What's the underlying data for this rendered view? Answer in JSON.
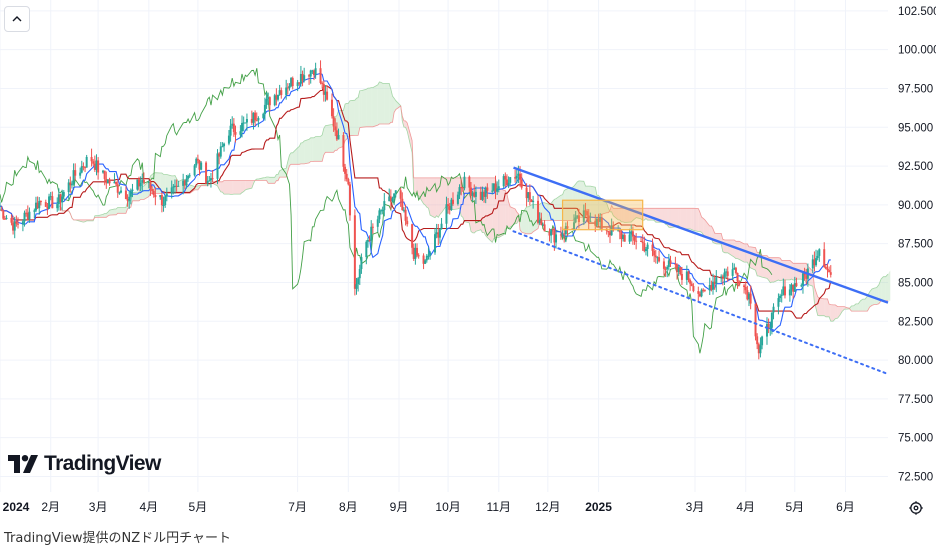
{
  "caption": "TradingView提供のNZドル円チャート",
  "logo_text": "TradingView",
  "icons": {
    "collapse": "chevron-up-icon",
    "settings": "gear-icon",
    "logo": "tradingview-logo-icon"
  },
  "colors": {
    "up_candle": "#26a69a",
    "down_candle": "#ef5350",
    "tenkan": "#2962ff",
    "kijun": "#b71c1c",
    "chikou": "#43a047",
    "cloud_bull": "#a5d6a7",
    "cloud_bear": "#ef9a9a",
    "trendline": "#3d6ef5",
    "highlight_box": "#f6b64a"
  },
  "chart_data": {
    "type": "candlestick",
    "symbol": "NZDJPY",
    "x_axis_labels": [
      "2024",
      "2月",
      "3月",
      "4月",
      "5月",
      "7月",
      "8月",
      "9月",
      "10月",
      "11月",
      "12月",
      "2025",
      "3月",
      "4月",
      "5月",
      "6月"
    ],
    "x_axis_bold": [
      "2024",
      "2025"
    ],
    "y_axis_labels": [
      "102.500",
      "100.000",
      "97.500",
      "95.000",
      "92.500",
      "90.000",
      "87.500",
      "85.000",
      "82.500",
      "80.000",
      "77.500",
      "75.000",
      "72.500"
    ],
    "ylim": [
      71.5,
      103.2
    ],
    "xlim": [
      "2024-01-01",
      "2025-06-27"
    ],
    "grid": true,
    "price_path": [
      [
        "2024-01-01",
        89.7
      ],
      [
        "2024-01-10",
        88.6
      ],
      [
        "2024-01-25",
        90.2
      ],
      [
        "2024-02-05",
        90.1
      ],
      [
        "2024-02-15",
        91.8
      ],
      [
        "2024-02-25",
        93.1
      ],
      [
        "2024-03-05",
        91.7
      ],
      [
        "2024-03-20",
        90.6
      ],
      [
        "2024-03-28",
        91.6
      ],
      [
        "2024-04-10",
        90.2
      ],
      [
        "2024-04-20",
        91.2
      ],
      [
        "2024-04-30",
        92.8
      ],
      [
        "2024-05-08",
        91.5
      ],
      [
        "2024-05-20",
        94.8
      ],
      [
        "2024-05-31",
        95.2
      ],
      [
        "2024-06-10",
        96.3
      ],
      [
        "2024-06-20",
        97.4
      ],
      [
        "2024-07-01",
        98.2
      ],
      [
        "2024-07-11",
        98.8
      ],
      [
        "2024-07-15",
        97.9
      ],
      [
        "2024-07-25",
        94.6
      ],
      [
        "2024-08-01",
        91.5
      ],
      [
        "2024-08-05",
        84.5
      ],
      [
        "2024-08-12",
        87.6
      ],
      [
        "2024-08-22",
        89.7
      ],
      [
        "2024-08-31",
        90.8
      ],
      [
        "2024-09-10",
        86.9
      ],
      [
        "2024-09-17",
        86.2
      ],
      [
        "2024-09-30",
        89.6
      ],
      [
        "2024-10-10",
        91.5
      ],
      [
        "2024-10-20",
        90.5
      ],
      [
        "2024-10-31",
        91.2
      ],
      [
        "2024-11-08",
        91.8
      ],
      [
        "2024-11-13",
        92.0
      ],
      [
        "2024-11-25",
        89.2
      ],
      [
        "2024-12-05",
        88.0
      ],
      [
        "2024-12-15",
        88.6
      ],
      [
        "2024-12-25",
        89.4
      ],
      [
        "2025-01-05",
        88.5
      ],
      [
        "2025-01-15",
        88.0
      ],
      [
        "2025-01-25",
        87.8
      ],
      [
        "2025-02-05",
        86.6
      ],
      [
        "2025-02-15",
        85.9
      ],
      [
        "2025-02-25",
        85.3
      ],
      [
        "2025-03-05",
        84.1
      ],
      [
        "2025-03-15",
        85.5
      ],
      [
        "2025-03-25",
        85.8
      ],
      [
        "2025-04-04",
        84.0
      ],
      [
        "2025-04-09",
        80.5
      ],
      [
        "2025-04-15",
        82.3
      ],
      [
        "2025-04-25",
        84.6
      ],
      [
        "2025-05-05",
        85.0
      ],
      [
        "2025-05-12",
        86.3
      ],
      [
        "2025-05-16",
        87.3
      ],
      [
        "2025-05-21",
        85.8
      ],
      [
        "2025-05-24",
        85.3
      ]
    ],
    "ichimoku": {
      "lines": [
        "tenkan",
        "kijun",
        "chikou",
        "senkou_a",
        "senkou_b"
      ],
      "cloud_extends_to": "2025-06-27"
    },
    "drawings": {
      "resistance_line": {
        "from": [
          "2024-11-10",
          92.4
        ],
        "to": [
          "2025-06-27",
          83.7
        ],
        "style": "solid"
      },
      "support_line": {
        "from": [
          "2024-11-10",
          88.3
        ],
        "to": [
          "2025-06-27",
          79.1
        ],
        "style": "dotted"
      },
      "highlight_box": {
        "x_from": "2024-12-10",
        "x_to": "2025-01-28",
        "y_from": 88.4,
        "y_to": 90.3
      }
    }
  }
}
